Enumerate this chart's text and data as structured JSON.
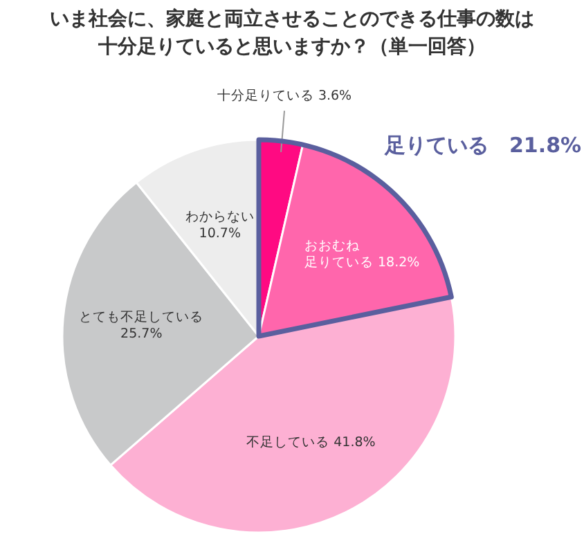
{
  "chart_data": {
    "type": "pie",
    "title": "いま社会に、家庭と両立させることのできる仕事の数は十分足りていると思いますか？（単一回答）",
    "categories": [
      "十分足りている",
      "おおむね足りている",
      "不足している",
      "とても不足している",
      "わからない"
    ],
    "values": [
      3.6,
      18.2,
      41.8,
      25.7,
      10.7
    ],
    "value_labels": [
      "3.6%",
      "18.2%",
      "41.8%",
      "25.7%",
      "10.7%"
    ],
    "colors": [
      "#ff0a82",
      "#ff66ac",
      "#fdb0d3",
      "#c8c9ca",
      "#ededed"
    ],
    "annotations": [
      "足りている　21.8%"
    ]
  }
}
